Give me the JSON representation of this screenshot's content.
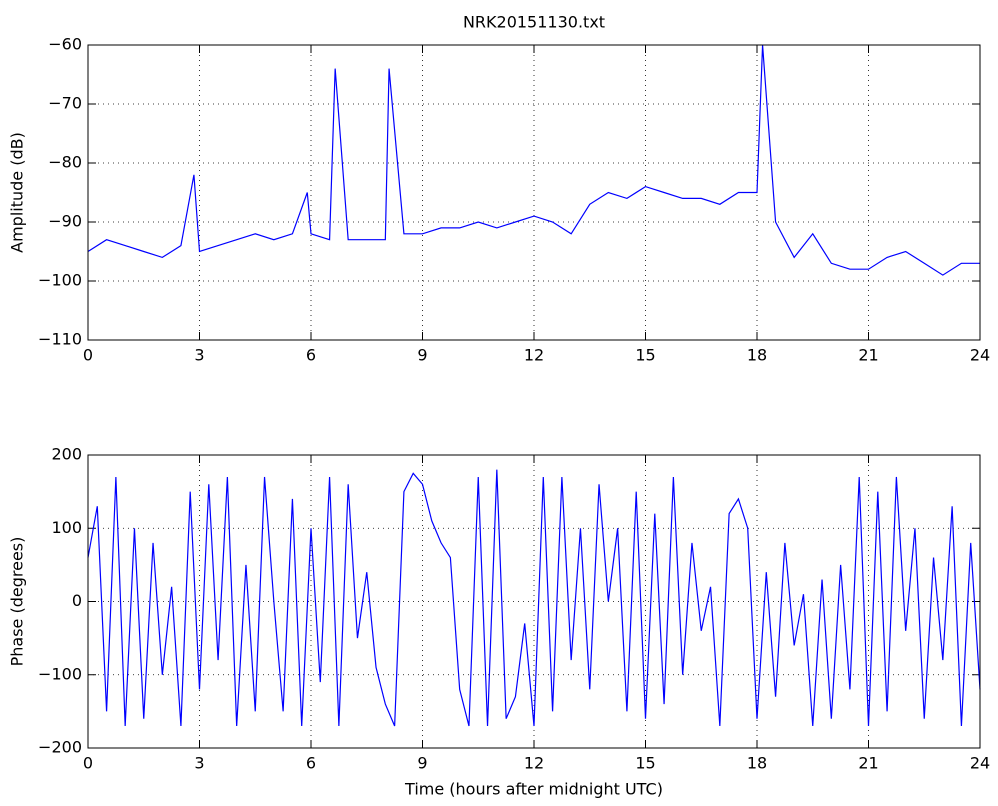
{
  "chart_data": [
    {
      "type": "line",
      "title": "NRK20151130.txt",
      "ylabel": "Amplitude (dB)",
      "x": [
        0,
        0.5,
        1,
        1.5,
        2,
        2.5,
        2.85,
        3,
        3.5,
        4,
        4.5,
        5,
        5.5,
        5.9,
        6,
        6.5,
        6.65,
        7,
        7.5,
        8,
        8.1,
        8.5,
        9,
        9.5,
        10,
        10.5,
        11,
        11.5,
        12,
        12.5,
        13,
        13.5,
        14,
        14.5,
        15,
        15.5,
        16,
        16.5,
        17,
        17.5,
        18,
        18.15,
        18.5,
        19,
        19.5,
        20,
        20.5,
        21,
        21.5,
        22,
        22.5,
        23,
        23.5,
        24
      ],
      "series": [
        {
          "color": "#0000ff",
          "values": [
            -95,
            -93,
            -94,
            -95,
            -96,
            -94,
            -82,
            -95,
            -94,
            -93,
            -92,
            -93,
            -92,
            -85,
            -92,
            -93,
            -64,
            -93,
            -93,
            -93,
            -64,
            -92,
            -92,
            -91,
            -91,
            -90,
            -91,
            -90,
            -89,
            -90,
            -92,
            -87,
            -85,
            -86,
            -84,
            -85,
            -86,
            -86,
            -87,
            -85,
            -85,
            -60,
            -90,
            -96,
            -92,
            -97,
            -98,
            -98,
            -96,
            -95,
            -97,
            -99,
            -97,
            -97
          ]
        }
      ],
      "xlim": [
        0,
        24
      ],
      "xticks": [
        0,
        3,
        6,
        9,
        12,
        15,
        18,
        21,
        24
      ],
      "ylim": [
        -110,
        -60
      ],
      "yticks": [
        {
          "value": -110,
          "label": "−110"
        },
        {
          "value": -100,
          "label": "−100"
        },
        {
          "value": -90,
          "label": "−90"
        },
        {
          "value": -80,
          "label": "−80"
        },
        {
          "value": -70,
          "label": "−70"
        },
        {
          "value": -60,
          "label": "−60"
        }
      ],
      "grid": true
    },
    {
      "type": "line",
      "xlabel": "Time (hours after midnight UTC)",
      "ylabel": "Phase (degrees)",
      "x": [
        0,
        0.25,
        0.5,
        0.75,
        1,
        1.25,
        1.5,
        1.75,
        2,
        2.25,
        2.5,
        2.75,
        3,
        3.25,
        3.5,
        3.75,
        4,
        4.25,
        4.5,
        4.75,
        5,
        5.25,
        5.5,
        5.75,
        6,
        6.25,
        6.5,
        6.75,
        7,
        7.25,
        7.5,
        7.75,
        8,
        8.25,
        8.5,
        8.75,
        9,
        9.25,
        9.5,
        9.75,
        10,
        10.25,
        10.5,
        10.75,
        11,
        11.25,
        11.5,
        11.75,
        12,
        12.25,
        12.5,
        12.75,
        13,
        13.25,
        13.5,
        13.75,
        14,
        14.25,
        14.5,
        14.75,
        15,
        15.25,
        15.5,
        15.75,
        16,
        16.25,
        16.5,
        16.75,
        17,
        17.25,
        17.5,
        17.75,
        18,
        18.25,
        18.5,
        18.75,
        19,
        19.25,
        19.5,
        19.75,
        20,
        20.25,
        20.5,
        20.75,
        21,
        21.25,
        21.5,
        21.75,
        22,
        22.25,
        22.5,
        22.75,
        23,
        23.25,
        23.5,
        23.75,
        24
      ],
      "series": [
        {
          "color": "#0000ff",
          "values": [
            60,
            130,
            -150,
            170,
            -170,
            100,
            -160,
            80,
            -100,
            20,
            -170,
            150,
            -120,
            160,
            -80,
            170,
            -170,
            50,
            -150,
            170,
            0,
            -150,
            140,
            -170,
            100,
            -110,
            170,
            -170,
            160,
            -50,
            40,
            -90,
            -140,
            -170,
            150,
            175,
            160,
            110,
            80,
            60,
            -120,
            -170,
            170,
            -170,
            180,
            -160,
            -130,
            -30,
            -170,
            170,
            -150,
            170,
            -80,
            100,
            -120,
            160,
            0,
            100,
            -150,
            150,
            -160,
            120,
            -140,
            170,
            -100,
            80,
            -40,
            20,
            -170,
            120,
            140,
            100,
            -160,
            40,
            -130,
            80,
            -60,
            10,
            -170,
            30,
            -160,
            50,
            -120,
            170,
            -170,
            150,
            -150,
            170,
            -40,
            100,
            -160,
            60,
            -80,
            130,
            -170,
            80,
            -120
          ]
        }
      ],
      "xlim": [
        0,
        24
      ],
      "xticks": [
        0,
        3,
        6,
        9,
        12,
        15,
        18,
        21,
        24
      ],
      "ylim": [
        -200,
        200
      ],
      "yticks": [
        {
          "value": -200,
          "label": "−200"
        },
        {
          "value": -100,
          "label": "−100"
        },
        0,
        100,
        200
      ],
      "grid": true
    }
  ]
}
